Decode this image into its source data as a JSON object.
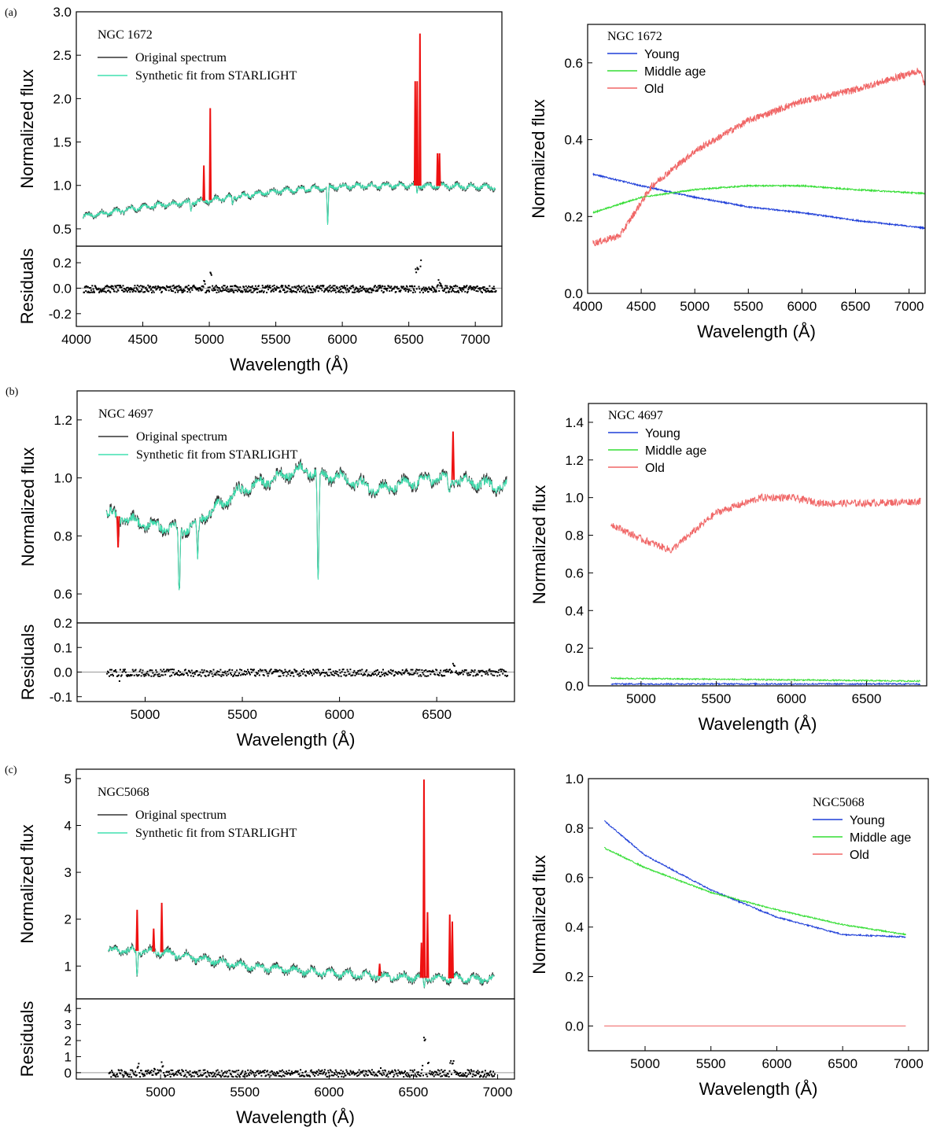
{
  "figure": {
    "colors": {
      "original": "#333333",
      "synthetic": "#40e0b0",
      "emission": "#ee1111",
      "residual": "#000000",
      "young": "#1f3fd8",
      "middle": "#33dd33",
      "old": "#f06666"
    }
  },
  "chart_data": [
    {
      "id": "a_fit",
      "type": "line",
      "panel_label": "(a)",
      "galaxy": "NGC 1672",
      "xlabel": "Wavelength (Å)",
      "ylabel": "Normalized flux",
      "residual_ylabel": "Residuals",
      "xlim": [
        4000,
        7200
      ],
      "ylim": [
        0.3,
        3.0
      ],
      "residual_ylim": [
        -0.3,
        0.33
      ],
      "x_ticks": [
        "4000",
        "4500",
        "5000",
        "5500",
        "6000",
        "6500",
        "7000"
      ],
      "y_ticks": [
        "0.5",
        "1.0",
        "1.5",
        "2.0",
        "2.5",
        "3.0"
      ],
      "residual_ticks": [
        "0.2",
        "0.0",
        "-0.2"
      ],
      "legend": [
        "Original spectrum",
        "Synthetic fit from STARLIGHT"
      ],
      "spectrum_range": [
        4050,
        7150
      ],
      "continuum": [
        [
          4050,
          0.64
        ],
        [
          4500,
          0.75
        ],
        [
          5000,
          0.83
        ],
        [
          5500,
          0.93
        ],
        [
          6000,
          0.99
        ],
        [
          6500,
          1.0
        ],
        [
          7150,
          0.98
        ]
      ],
      "absorption_lines": [
        [
          4861,
          0.12
        ],
        [
          5175,
          0.08
        ],
        [
          5890,
          0.45
        ],
        [
          6563,
          0.1
        ]
      ],
      "emission_lines": [
        [
          4959,
          1.23
        ],
        [
          5007,
          1.89
        ],
        [
          6548,
          2.2
        ],
        [
          6563,
          2.2
        ],
        [
          6584,
          2.75
        ],
        [
          6716,
          1.37
        ],
        [
          6731,
          1.37
        ]
      ]
    },
    {
      "id": "a_pop",
      "type": "line",
      "galaxy": "NGC 1672",
      "xlabel": "Wavelength (Å)",
      "ylabel": "Normalized flux",
      "xlim": [
        4000,
        7150
      ],
      "ylim": [
        0.0,
        0.7
      ],
      "x_ticks": [
        "4000",
        "4500",
        "5000",
        "5500",
        "6000",
        "6500",
        "7000"
      ],
      "y_ticks": [
        "0.0",
        "0.2",
        "0.4",
        "0.6"
      ],
      "series": [
        {
          "name": "Young",
          "color_key": "young",
          "points": [
            [
              4050,
              0.31
            ],
            [
              4500,
              0.28
            ],
            [
              5000,
              0.25
            ],
            [
              5500,
              0.225
            ],
            [
              6000,
              0.21
            ],
            [
              6500,
              0.19
            ],
            [
              7150,
              0.17
            ]
          ]
        },
        {
          "name": "Middle age",
          "color_key": "middle",
          "points": [
            [
              4050,
              0.21
            ],
            [
              4500,
              0.25
            ],
            [
              5000,
              0.27
            ],
            [
              5500,
              0.28
            ],
            [
              6000,
              0.28
            ],
            [
              6500,
              0.27
            ],
            [
              7150,
              0.26
            ]
          ]
        },
        {
          "name": "Old",
          "color_key": "old",
          "points": [
            [
              4050,
              0.13
            ],
            [
              4300,
              0.15
            ],
            [
              4600,
              0.28
            ],
            [
              5000,
              0.37
            ],
            [
              5500,
              0.45
            ],
            [
              6000,
              0.5
            ],
            [
              6500,
              0.53
            ],
            [
              7100,
              0.58
            ],
            [
              7150,
              0.54
            ]
          ]
        }
      ]
    },
    {
      "id": "b_fit",
      "type": "line",
      "panel_label": "(b)",
      "galaxy": "NGC 4697",
      "xlabel": "Wavelength (Å)",
      "ylabel": "Normalized flux",
      "residual_ylabel": "Residuals",
      "xlim": [
        4650,
        6900
      ],
      "ylim": [
        0.5,
        1.3
      ],
      "residual_ylim": [
        -0.12,
        0.2
      ],
      "x_ticks": [
        "5000",
        "5500",
        "6000",
        "6500"
      ],
      "y_ticks": [
        "0.6",
        "0.8",
        "1.0",
        "1.2"
      ],
      "residual_ticks": [
        "0.2",
        "0.1",
        "0.0",
        "-0.1"
      ],
      "legend": [
        "Original spectrum",
        "Synthetic fit from STARLIGHT"
      ],
      "spectrum_range": [
        4800,
        6860
      ],
      "continuum": [
        [
          4800,
          0.88
        ],
        [
          5000,
          0.84
        ],
        [
          5200,
          0.82
        ],
        [
          5500,
          0.96
        ],
        [
          5800,
          1.03
        ],
        [
          6000,
          1.0
        ],
        [
          6200,
          0.96
        ],
        [
          6500,
          1.0
        ],
        [
          6860,
          0.97
        ]
      ],
      "absorption_lines": [
        [
          4861,
          0.08
        ],
        [
          5175,
          0.22
        ],
        [
          5270,
          0.14
        ],
        [
          5890,
          0.38
        ],
        [
          6563,
          0.06
        ]
      ],
      "emission_lines": [
        [
          4861,
          0.76
        ],
        [
          6584,
          1.16
        ]
      ]
    },
    {
      "id": "b_pop",
      "type": "line",
      "galaxy": "NGC 4697",
      "xlabel": "Wavelength (Å)",
      "ylabel": "Normalized flux",
      "xlim": [
        4650,
        6900
      ],
      "ylim": [
        0.0,
        1.5
      ],
      "x_ticks": [
        "5000",
        "5500",
        "6000",
        "6500"
      ],
      "y_ticks": [
        "0.0",
        "0.2",
        "0.4",
        "0.6",
        "0.8",
        "1.0",
        "1.2",
        "1.4"
      ],
      "series": [
        {
          "name": "Young",
          "color_key": "young",
          "points": [
            [
              4800,
              0.01
            ],
            [
              6860,
              0.01
            ]
          ]
        },
        {
          "name": "Middle age",
          "color_key": "middle",
          "points": [
            [
              4800,
              0.04
            ],
            [
              5500,
              0.035
            ],
            [
              6860,
              0.025
            ]
          ]
        },
        {
          "name": "Old",
          "color_key": "old",
          "points": [
            [
              4800,
              0.86
            ],
            [
              5000,
              0.78
            ],
            [
              5200,
              0.72
            ],
            [
              5500,
              0.92
            ],
            [
              5800,
              1.0
            ],
            [
              6000,
              1.0
            ],
            [
              6200,
              0.97
            ],
            [
              6500,
              0.97
            ],
            [
              6860,
              0.98
            ]
          ]
        }
      ]
    },
    {
      "id": "c_fit",
      "type": "line",
      "panel_label": "(c)",
      "galaxy": "NGC5068",
      "xlabel": "Wavelength (Å)",
      "ylabel": "Normalized flux",
      "residual_ylabel": "Residuals",
      "xlim": [
        4500,
        7100
      ],
      "ylim": [
        0.3,
        5.2
      ],
      "residual_ylim": [
        -0.4,
        4.6
      ],
      "x_ticks": [
        "5000",
        "5500",
        "6000",
        "6500",
        "7000"
      ],
      "y_ticks": [
        "1",
        "2",
        "3",
        "4",
        "5"
      ],
      "residual_ticks": [
        "4",
        "3",
        "2",
        "1",
        "0"
      ],
      "legend": [
        "Original spectrum",
        "Synthetic fit from STARLIGHT"
      ],
      "spectrum_range": [
        4690,
        6980
      ],
      "continuum": [
        [
          4690,
          1.35
        ],
        [
          5000,
          1.3
        ],
        [
          5500,
          1.0
        ],
        [
          6000,
          0.85
        ],
        [
          6500,
          0.75
        ],
        [
          6980,
          0.72
        ]
      ],
      "absorption_lines": [
        [
          4861,
          0.5
        ],
        [
          6563,
          0.2
        ]
      ],
      "emission_lines": [
        [
          4861,
          2.2
        ],
        [
          4959,
          1.8
        ],
        [
          5007,
          2.35
        ],
        [
          6300,
          1.05
        ],
        [
          6548,
          1.5
        ],
        [
          6563,
          4.98
        ],
        [
          6584,
          2.15
        ],
        [
          6716,
          2.1
        ],
        [
          6731,
          1.95
        ]
      ]
    },
    {
      "id": "c_pop",
      "type": "line",
      "galaxy": "NGC5068",
      "xlabel": "Wavelength (Å)",
      "ylabel": "Normalized flux",
      "xlim": [
        4570,
        7150
      ],
      "ylim": [
        -0.1,
        1.0
      ],
      "x_ticks": [
        "5000",
        "5500",
        "6000",
        "6500",
        "7000"
      ],
      "y_ticks": [
        "0.0",
        "0.2",
        "0.4",
        "0.6",
        "0.8",
        "1.0"
      ],
      "series": [
        {
          "name": "Young",
          "color_key": "young",
          "points": [
            [
              4690,
              0.83
            ],
            [
              5000,
              0.69
            ],
            [
              5500,
              0.55
            ],
            [
              6000,
              0.44
            ],
            [
              6500,
              0.37
            ],
            [
              6980,
              0.36
            ]
          ]
        },
        {
          "name": "Middle age",
          "color_key": "middle",
          "points": [
            [
              4690,
              0.72
            ],
            [
              5000,
              0.64
            ],
            [
              5500,
              0.54
            ],
            [
              6000,
              0.47
            ],
            [
              6500,
              0.41
            ],
            [
              6980,
              0.37
            ]
          ]
        },
        {
          "name": "Old",
          "color_key": "old",
          "points": [
            [
              4690,
              0.0
            ],
            [
              6980,
              0.0
            ]
          ]
        }
      ]
    }
  ]
}
